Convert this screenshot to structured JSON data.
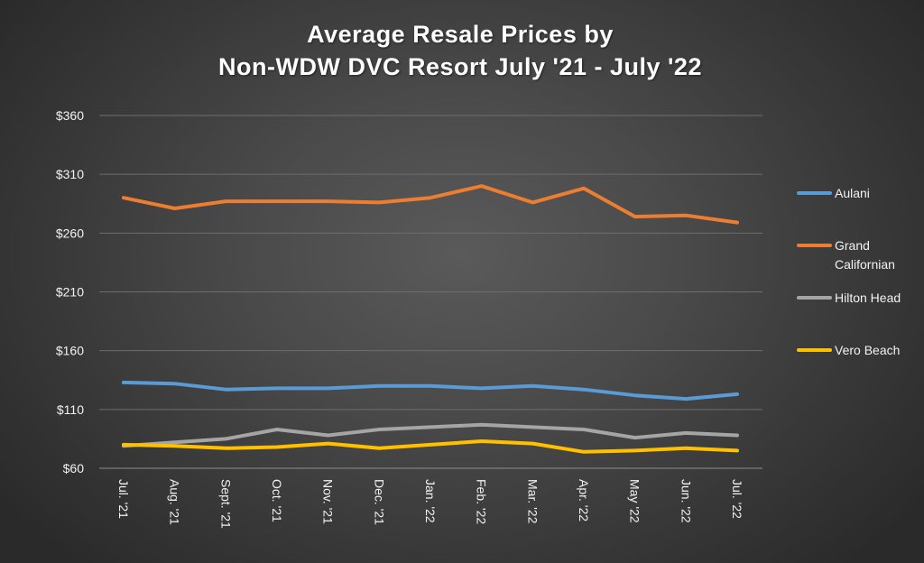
{
  "chart_data": {
    "type": "line",
    "title_lines": [
      "Average Resale Prices by",
      "Non-WDW DVC Resort July '21 - July '22"
    ],
    "x": [
      "Jul. '21",
      "Aug. '21",
      "Sept. '21",
      "Oct. '21",
      "Nov. '21",
      "Dec. '21",
      "Jan. '22",
      "Feb. '22",
      "Mar. '22",
      "Apr. '22",
      "May '22",
      "Jun. '22",
      "Jul. '22"
    ],
    "y_ticks": [
      "$60",
      "$110",
      "$160",
      "$210",
      "$260",
      "$310",
      "$360"
    ],
    "ylim": [
      60,
      360
    ],
    "grid": true,
    "legend_position": "right",
    "series": [
      {
        "name": "Aulani",
        "legend_lines": [
          "Aulani"
        ],
        "color": "#5b9bd5",
        "values": [
          133,
          132,
          127,
          128,
          128,
          130,
          130,
          128,
          130,
          127,
          122,
          119,
          123
        ]
      },
      {
        "name": "Grand Californian",
        "legend_lines": [
          "Grand",
          "Californian"
        ],
        "color": "#ed7d31",
        "values": [
          290,
          281,
          287,
          287,
          287,
          286,
          290,
          300,
          286,
          298,
          274,
          275,
          269
        ]
      },
      {
        "name": "Hilton Head",
        "legend_lines": [
          "Hilton Head"
        ],
        "color": "#a5a5a5",
        "values": [
          79,
          82,
          85,
          93,
          88,
          93,
          95,
          97,
          95,
          93,
          86,
          90,
          88
        ]
      },
      {
        "name": "Vero Beach",
        "legend_lines": [
          "Vero Beach"
        ],
        "color": "#ffc000",
        "values": [
          80,
          79,
          77,
          78,
          81,
          77,
          80,
          83,
          81,
          74,
          75,
          77,
          75
        ]
      }
    ]
  }
}
